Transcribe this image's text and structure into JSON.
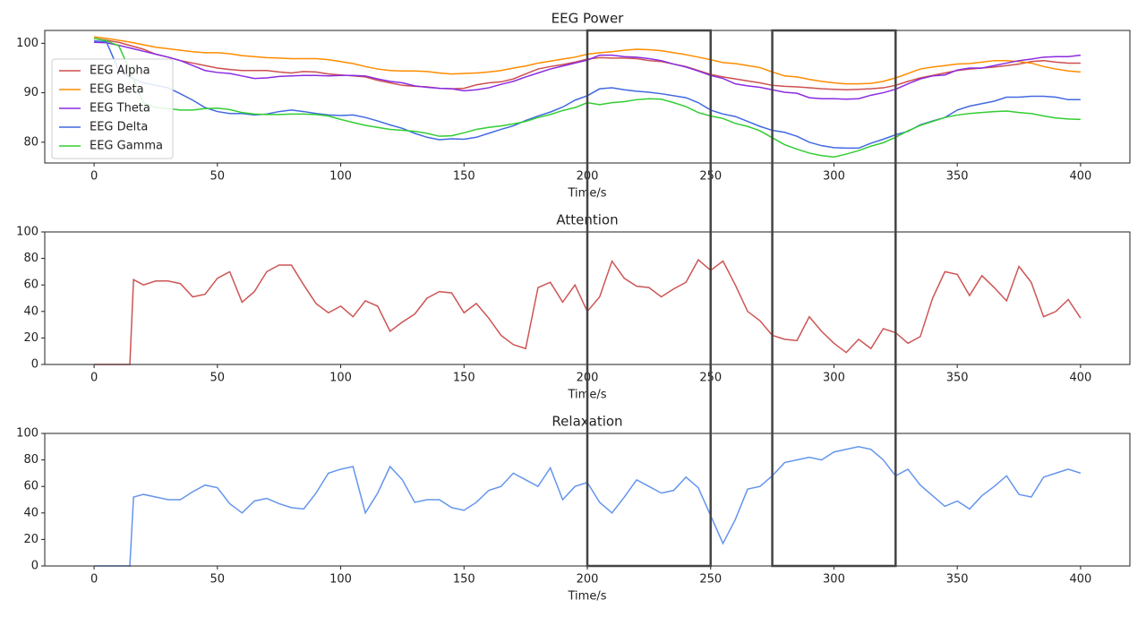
{
  "chart_data": [
    {
      "type": "line",
      "title": "EEG Power",
      "xlabel": "Time/s",
      "x": [
        0,
        5,
        10,
        15,
        20,
        25,
        30,
        35,
        40,
        45,
        50,
        55,
        60,
        65,
        70,
        75,
        80,
        85,
        90,
        95,
        100,
        105,
        110,
        115,
        120,
        125,
        130,
        135,
        140,
        145,
        150,
        155,
        160,
        165,
        170,
        175,
        180,
        185,
        190,
        195,
        200,
        205,
        210,
        215,
        220,
        225,
        230,
        235,
        240,
        245,
        250,
        255,
        260,
        265,
        270,
        275,
        280,
        285,
        290,
        295,
        300,
        305,
        310,
        315,
        320,
        325,
        330,
        335,
        340,
        345,
        350,
        355,
        360,
        365,
        370,
        375,
        380,
        385,
        390,
        395,
        400
      ],
      "series": [
        {
          "name": "EEG Alpha",
          "color": "#cd4f4f",
          "values": [
            101,
            100.6,
            100.2,
            99.5,
            98.8,
            97.8,
            97.2,
            96.5,
            96,
            95.5,
            95,
            94.7,
            94.5,
            94.5,
            94.5,
            94.2,
            94,
            94.3,
            94.2,
            93.8,
            93.6,
            93.4,
            93.2,
            92.5,
            92,
            91.5,
            91.3,
            91.2,
            90.9,
            90.8,
            90.9,
            91.6,
            92,
            92.2,
            92.8,
            93.8,
            94.8,
            95.3,
            95.7,
            96.2,
            96.8,
            97.1,
            97,
            97,
            96.9,
            96.5,
            96.3,
            95.8,
            95.3,
            94.5,
            93.7,
            93.2,
            92.8,
            92.4,
            92,
            91.5,
            91.3,
            91.2,
            91,
            90.8,
            90.7,
            90.6,
            90.7,
            90.8,
            91,
            91.5,
            92.3,
            93,
            93.5,
            94,
            94.5,
            94.8,
            95,
            95.2,
            95.5,
            95.8,
            96.3,
            96.5,
            96.2,
            96,
            96
          ]
        },
        {
          "name": "EEG Beta",
          "color": "#ff8c00",
          "values": [
            101.3,
            101,
            100.6,
            100.2,
            99.7,
            99.2,
            98.9,
            98.6,
            98.3,
            98.1,
            98.1,
            97.9,
            97.5,
            97.3,
            97.1,
            97,
            96.9,
            96.9,
            96.9,
            96.7,
            96.3,
            95.9,
            95.3,
            94.8,
            94.5,
            94.4,
            94.4,
            94.3,
            94,
            93.8,
            93.9,
            94,
            94.2,
            94.5,
            95,
            95.4,
            96,
            96.4,
            96.8,
            97.2,
            97.8,
            98.1,
            98.3,
            98.6,
            98.8,
            98.7,
            98.5,
            98.1,
            97.7,
            97.2,
            96.7,
            96.1,
            95.9,
            95.5,
            95.1,
            94.2,
            93.4,
            93.2,
            92.7,
            92.3,
            92,
            91.8,
            91.8,
            91.9,
            92.3,
            93,
            93.9,
            94.8,
            95.2,
            95.5,
            95.8,
            95.9,
            96.2,
            96.5,
            96.5,
            96.3,
            96,
            95.3,
            94.8,
            94.4,
            94.2
          ]
        },
        {
          "name": "EEG Theta",
          "color": "#8a2be2",
          "values": [
            100.2,
            100.1,
            99.6,
            99,
            98.4,
            97.8,
            97.2,
            96.5,
            95.5,
            94.5,
            94.1,
            93.9,
            93.4,
            92.9,
            93,
            93.3,
            93.4,
            93.5,
            93.5,
            93.4,
            93.5,
            93.5,
            93.4,
            92.8,
            92.3,
            92,
            91.4,
            91.1,
            90.9,
            90.8,
            90.4,
            90.6,
            91,
            91.7,
            92.3,
            93.2,
            94,
            94.8,
            95.4,
            96,
            96.6,
            97.6,
            97.6,
            97.3,
            97.2,
            96.9,
            96.5,
            95.8,
            95.2,
            94.4,
            93.5,
            92.9,
            91.8,
            91.4,
            91.1,
            90.6,
            90.1,
            89.9,
            89,
            88.8,
            88.8,
            88.7,
            88.8,
            89.5,
            90,
            90.7,
            91.8,
            92.8,
            93.4,
            93.6,
            94.6,
            95,
            95,
            95.5,
            96,
            96.5,
            96.8,
            97.2,
            97.3,
            97.3,
            97.6
          ]
        },
        {
          "name": "EEG Delta",
          "color": "#4169e1",
          "values": [
            100.5,
            100.3,
            94.5,
            93,
            92,
            91.5,
            91,
            89.8,
            88.5,
            87,
            86.2,
            85.8,
            85.8,
            85.5,
            85.7,
            86.2,
            86.5,
            86.2,
            85.8,
            85.5,
            85.4,
            85.5,
            85,
            84.3,
            83.5,
            82.8,
            81.8,
            81,
            80.5,
            80.7,
            80.6,
            81,
            81.8,
            82.6,
            83.3,
            84.4,
            85.3,
            86.1,
            87.1,
            88.5,
            89.4,
            90.8,
            91,
            90.6,
            90.3,
            90.1,
            89.8,
            89.4,
            89,
            88,
            86.5,
            85.7,
            85.2,
            84.2,
            83.2,
            82.4,
            82,
            81.2,
            80,
            79.3,
            78.9,
            78.8,
            78.8,
            79.8,
            80.6,
            81.5,
            82.2,
            83.5,
            84.3,
            85,
            86.5,
            87.3,
            87.8,
            88.3,
            89.1,
            89.1,
            89.3,
            89.3,
            89.1,
            88.6,
            88.6
          ]
        },
        {
          "name": "EEG Gamma",
          "color": "#32cd32",
          "values": [
            101,
            100.5,
            99.5,
            94,
            88,
            87,
            86.8,
            86.5,
            86.5,
            86.8,
            86.9,
            86.6,
            86,
            85.7,
            85.6,
            85.6,
            85.7,
            85.7,
            85.6,
            85.3,
            84.6,
            84,
            83.4,
            83,
            82.6,
            82.4,
            82.2,
            81.8,
            81.2,
            81.3,
            81.9,
            82.6,
            83,
            83.3,
            83.7,
            84.2,
            85,
            85.6,
            86.4,
            87,
            88,
            87.6,
            88,
            88.2,
            88.6,
            88.8,
            88.7,
            88,
            87.2,
            86,
            85.3,
            84.8,
            83.8,
            83.2,
            82.3,
            80.9,
            79.5,
            78.6,
            77.8,
            77.3,
            77,
            77.6,
            78.3,
            79.2,
            79.9,
            81,
            82.3,
            83.4,
            84.2,
            85,
            85.5,
            85.8,
            86,
            86.2,
            86.3,
            86,
            85.8,
            85.3,
            84.9,
            84.7,
            84.6
          ]
        }
      ],
      "xlim": [
        -20,
        420
      ],
      "xticks": [
        0,
        50,
        100,
        150,
        200,
        250,
        300,
        350,
        400
      ],
      "ylim": [
        75.8,
        102.6
      ],
      "yticks": [
        80,
        90,
        100
      ],
      "legend": "upper left"
    },
    {
      "type": "line",
      "title": "Attention",
      "xlabel": "Time/s",
      "x": [
        0,
        5,
        10,
        14.5,
        16,
        20,
        25,
        30,
        35,
        40,
        45,
        50,
        55,
        60,
        65,
        70,
        75,
        80,
        85,
        90,
        95,
        100,
        105,
        110,
        115,
        120,
        125,
        130,
        135,
        140,
        145,
        150,
        155,
        160,
        165,
        170,
        175,
        180,
        185,
        190,
        195,
        200,
        205,
        210,
        215,
        220,
        225,
        230,
        235,
        240,
        245,
        250,
        255,
        260,
        265,
        270,
        275,
        280,
        285,
        290,
        295,
        300,
        305,
        310,
        315,
        320,
        325,
        330,
        335,
        340,
        345,
        350,
        355,
        360,
        365,
        370,
        375,
        380,
        385,
        390,
        395,
        400
      ],
      "series": [
        {
          "name": "Attention",
          "color": "#cd5555",
          "values": [
            0,
            0,
            0,
            0,
            64,
            60,
            63,
            63,
            61,
            51,
            53,
            65,
            70,
            47,
            55,
            70,
            75,
            75,
            60,
            46,
            39,
            44,
            36,
            48,
            44,
            25,
            32,
            38,
            50,
            55,
            54,
            39,
            46,
            35,
            22,
            15,
            12,
            58,
            62,
            47,
            60,
            40,
            51,
            78,
            65,
            59,
            58,
            51,
            57,
            62,
            79,
            71,
            78,
            60,
            40,
            33,
            22,
            19,
            18,
            36,
            25,
            16,
            9,
            19,
            12,
            27,
            24,
            16,
            21,
            50,
            70,
            68,
            52,
            67,
            58,
            48,
            74,
            62,
            36,
            40,
            49,
            35
          ]
        }
      ],
      "xlim": [
        -20,
        420
      ],
      "xticks": [
        0,
        50,
        100,
        150,
        200,
        250,
        300,
        350,
        400
      ],
      "ylim": [
        0,
        100
      ],
      "yticks": [
        0,
        20,
        40,
        60,
        80,
        100
      ]
    },
    {
      "type": "line",
      "title": "Relaxation",
      "xlabel": "Time/s",
      "x": [
        0,
        5,
        10,
        14.5,
        16,
        20,
        25,
        30,
        35,
        40,
        45,
        50,
        55,
        60,
        65,
        70,
        75,
        80,
        85,
        90,
        95,
        100,
        105,
        110,
        115,
        120,
        125,
        130,
        135,
        140,
        145,
        150,
        155,
        160,
        165,
        170,
        175,
        180,
        185,
        190,
        195,
        200,
        205,
        210,
        215,
        220,
        225,
        230,
        235,
        240,
        245,
        250,
        255,
        260,
        265,
        270,
        275,
        280,
        285,
        290,
        295,
        300,
        305,
        310,
        315,
        320,
        325,
        330,
        335,
        340,
        345,
        350,
        355,
        360,
        365,
        370,
        375,
        380,
        385,
        390,
        395,
        400
      ],
      "series": [
        {
          "name": "Relaxation",
          "color": "#6495ed",
          "values": [
            0,
            0,
            0,
            0,
            52,
            54,
            52,
            50,
            50,
            56,
            61,
            59,
            47,
            40,
            49,
            51,
            47,
            44,
            43,
            55,
            70,
            73,
            75,
            40,
            55,
            75,
            65,
            48,
            50,
            50,
            44,
            42,
            48,
            57,
            60,
            70,
            65,
            60,
            74,
            50,
            60,
            63,
            48,
            40,
            52,
            65,
            60,
            55,
            57,
            67,
            59,
            38,
            17,
            35,
            58,
            60,
            68,
            78,
            80,
            82,
            80,
            86,
            88,
            90,
            88,
            80,
            68,
            73,
            61,
            53,
            45,
            49,
            43,
            53,
            60,
            68,
            54,
            52,
            67,
            70,
            73,
            70
          ]
        }
      ],
      "xlim": [
        -20,
        420
      ],
      "xticks": [
        0,
        50,
        100,
        150,
        200,
        250,
        300,
        350,
        400
      ],
      "ylim": [
        0,
        100
      ],
      "yticks": [
        0,
        20,
        40,
        60,
        80,
        100
      ]
    }
  ],
  "highlights": [
    [
      200,
      250
    ],
    [
      275,
      325
    ]
  ]
}
